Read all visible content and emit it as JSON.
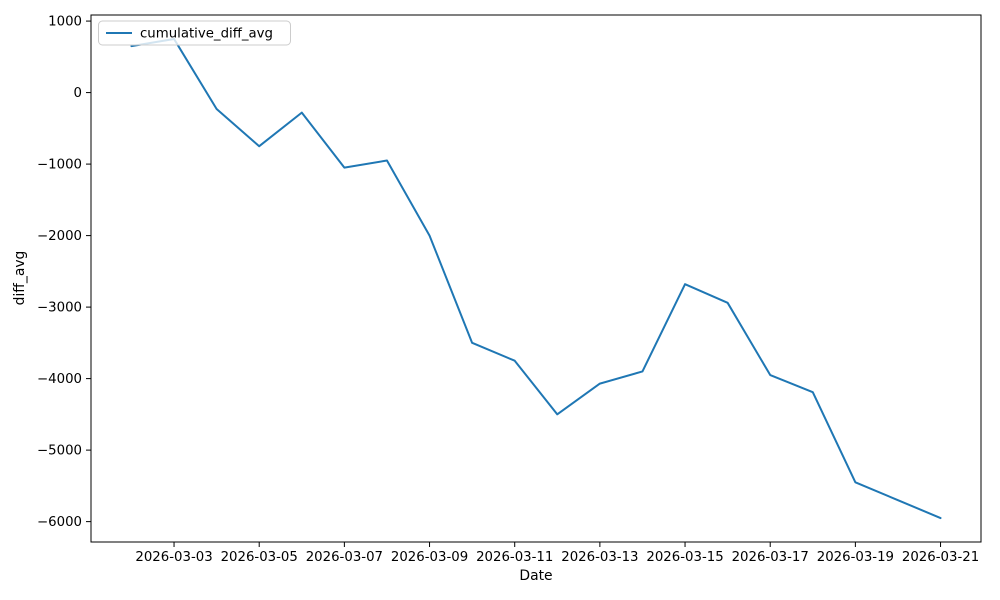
{
  "figure": {
    "background": "#ffffff"
  },
  "legend": {
    "label": "cumulative_diff_avg",
    "position": "upper-left"
  },
  "chart_data": {
    "type": "line",
    "title": "",
    "xlabel": "Date",
    "ylabel": "diff_avg",
    "grid": false,
    "line_color": "#1f77b4",
    "x": [
      "2026-03-02",
      "2026-03-03",
      "2026-03-04",
      "2026-03-05",
      "2026-03-06",
      "2026-03-07",
      "2026-03-08",
      "2026-03-09",
      "2026-03-10",
      "2026-03-11",
      "2026-03-12",
      "2026-03-13",
      "2026-03-14",
      "2026-03-15",
      "2026-03-16",
      "2026-03-17",
      "2026-03-18",
      "2026-03-19",
      "2026-03-20",
      "2026-03-21"
    ],
    "series": [
      {
        "name": "cumulative_diff_avg",
        "values": [
          650,
          750,
          -230,
          -750,
          -280,
          -1050,
          -950,
          -2000,
          -3500,
          -3750,
          -4500,
          -4070,
          -3900,
          -2680,
          -2940,
          -3950,
          -4190,
          -5450,
          -5700,
          -5950
        ]
      }
    ],
    "x_tick_labels": [
      "2026-03-03",
      "2026-03-05",
      "2026-03-07",
      "2026-03-09",
      "2026-03-11",
      "2026-03-13",
      "2026-03-15",
      "2026-03-17",
      "2026-03-19",
      "2026-03-21"
    ],
    "y_ticks": [
      1000,
      0,
      -1000,
      -2000,
      -3000,
      -4000,
      -5000,
      -6000
    ],
    "ylim": [
      -6285,
      1085
    ],
    "xlim_days": [
      -0.95,
      19.95
    ]
  }
}
